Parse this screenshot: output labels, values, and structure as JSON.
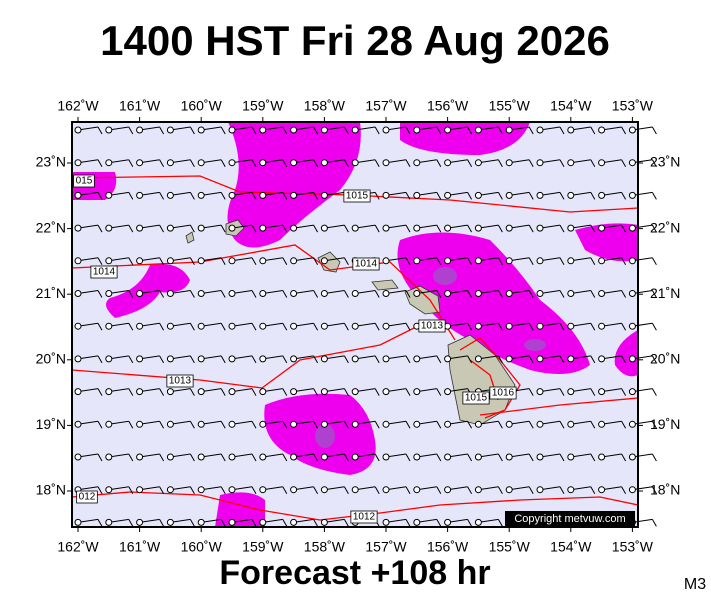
{
  "header": {
    "title": "1400 HST Fri 28 Aug 2026"
  },
  "map": {
    "longitude_labels": [
      "162˚W",
      "161˚W",
      "160˚W",
      "159˚W",
      "158˚W",
      "157˚W",
      "156˚W",
      "155˚W",
      "154˚W",
      "153˚W"
    ],
    "latitude_labels": [
      "23˚N",
      "22˚N",
      "21˚N",
      "20˚N",
      "19˚N",
      "18˚N"
    ],
    "isobar_labels": [
      "015",
      "1015",
      "1014",
      "1014",
      "1013",
      "1013",
      "1015",
      "1016",
      "012",
      "1012"
    ],
    "copyright": "Copyright metvuw.com"
  },
  "footer": {
    "forecast": "Forecast +108 hr",
    "code": "M3"
  }
}
